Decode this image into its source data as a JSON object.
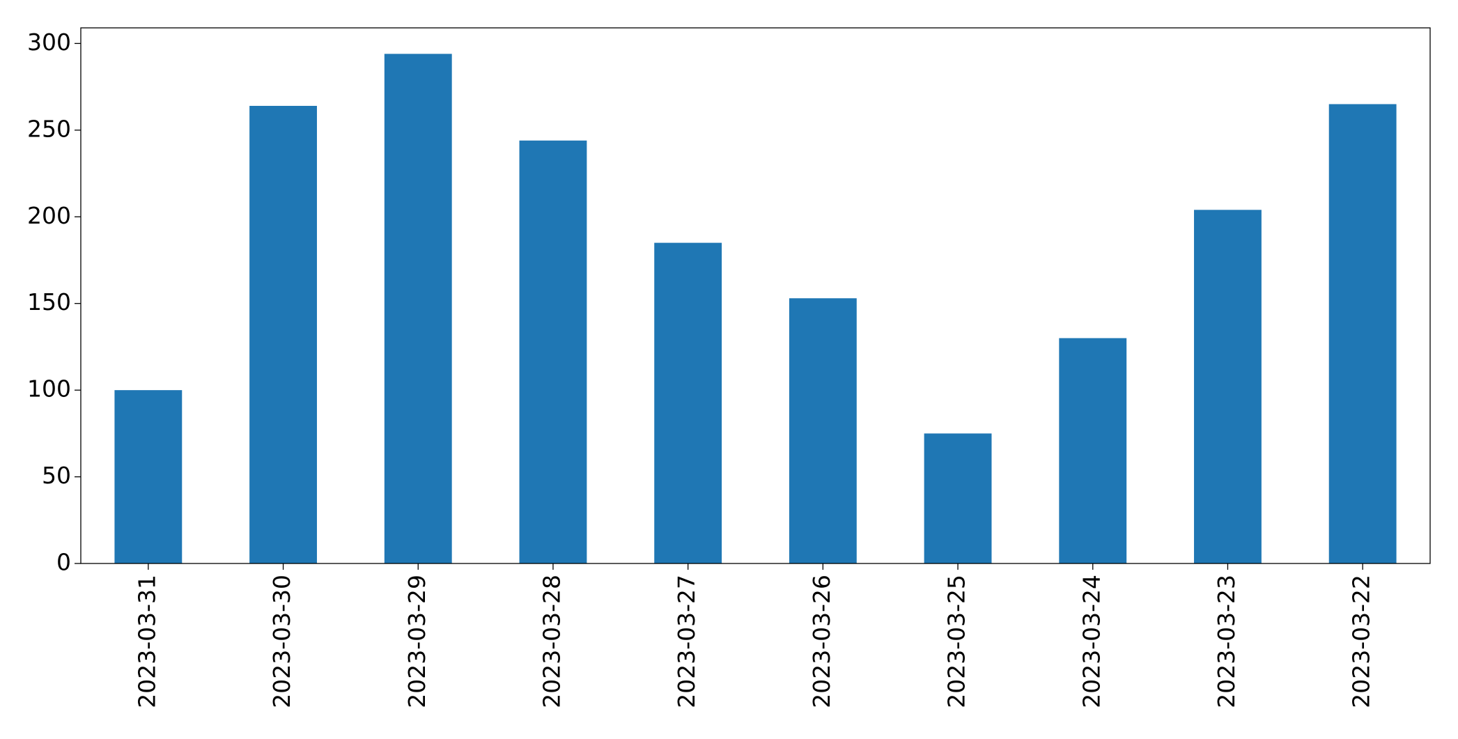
{
  "chart_data": {
    "type": "bar",
    "categories": [
      "2023-03-31",
      "2023-03-30",
      "2023-03-29",
      "2023-03-28",
      "2023-03-27",
      "2023-03-26",
      "2023-03-25",
      "2023-03-24",
      "2023-03-23",
      "2023-03-22"
    ],
    "values": [
      100,
      264,
      294,
      244,
      185,
      153,
      75,
      130,
      204,
      265
    ],
    "color": "#1f77b4",
    "ylim": [
      0,
      309
    ],
    "yticks": [
      0,
      50,
      100,
      150,
      200,
      250,
      300
    ],
    "grid": false
  }
}
